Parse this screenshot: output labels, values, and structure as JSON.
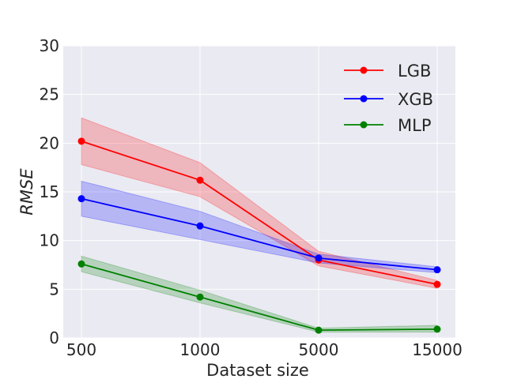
{
  "chart_data": {
    "type": "line",
    "xlabel": "Dataset size",
    "ylabel": "RMSE",
    "x_categories": [
      "500",
      "1000",
      "5000",
      "15000"
    ],
    "y_ticks": [
      "0",
      "5",
      "10",
      "15",
      "20",
      "25",
      "30"
    ],
    "ylim": [
      0,
      30
    ],
    "grid": true,
    "legend_position": "top-right",
    "series": [
      {
        "name": "LGB",
        "color": "#ff0000",
        "values": [
          20.2,
          16.2,
          8.0,
          5.5
        ],
        "lower": [
          17.8,
          14.5,
          7.4,
          5.1
        ],
        "upper": [
          22.6,
          18.0,
          8.9,
          5.9
        ]
      },
      {
        "name": "XGB",
        "color": "#0000ff",
        "values": [
          14.3,
          11.5,
          8.2,
          7.0
        ],
        "lower": [
          12.5,
          10.1,
          7.7,
          6.7
        ],
        "upper": [
          16.1,
          13.0,
          8.6,
          7.3
        ]
      },
      {
        "name": "MLP",
        "color": "#008000",
        "values": [
          7.6,
          4.2,
          0.8,
          0.9
        ],
        "lower": [
          6.8,
          3.6,
          0.6,
          0.6
        ],
        "upper": [
          8.4,
          4.9,
          1.0,
          1.3
        ]
      }
    ]
  }
}
